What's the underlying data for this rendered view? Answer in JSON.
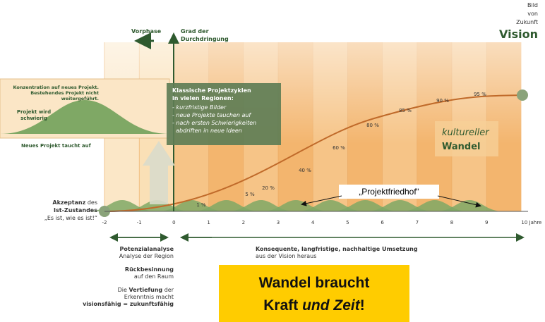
{
  "vision": {
    "line1": "Bild",
    "line2": "von",
    "line3": "Zukunft",
    "title": "Vision"
  },
  "vorphase": "Vorphase",
  "y_axis": {
    "line1": "Grad der",
    "line2": "Durchdringung"
  },
  "inset": {
    "concentration1": "Konzentration auf neues Projekt.",
    "concentration2": "Bestehendes Projekt nicht",
    "concentration3": "weitergeführt.",
    "difficult1": "Projekt wird",
    "difficult2": "schwierig",
    "new_project": "Neues Projekt taucht auf"
  },
  "cycles_box": {
    "title1": "Klassische Projektzyklen",
    "title2": "in vielen Regionen:",
    "items": [
      "- kurzfristige Bilder",
      "- neue Projekte tauchen auf",
      "- nach ersten Schwierigkeiten",
      "  abdriften in neue Ideen"
    ]
  },
  "cultural": {
    "line1": "kultureller",
    "line2": "Wandel"
  },
  "graveyard": "„Projektfriedhof“",
  "acceptance": {
    "bold": "Akzeptanz",
    "rest": " des",
    "line2": "Ist-Zustandes",
    "quote": "„Es ist, wie es ist!“"
  },
  "axis_labels": [
    "-2",
    "-1",
    "0",
    "1",
    "2",
    "3",
    "4",
    "5",
    "6",
    "7",
    "8",
    "9",
    "10 Jahre"
  ],
  "percent_labels": [
    "1 %",
    "5 %",
    "20 %",
    "40 %",
    "60 %",
    "80 %",
    "85 %",
    "90 %",
    "95 %"
  ],
  "left_notes": {
    "potential": "Potenzialanalyse",
    "potential_sub": "Analyse der Region",
    "reflection": "Rückbesinnung",
    "reflection_sub": "auf den Raum",
    "deepening_a": "Die ",
    "deepening_b": "Vertiefung",
    "deepening_c": " der",
    "deepening2": "Erkenntnis macht",
    "deepening3": "visionsfähig = zukunftsfähig"
  },
  "implementation": {
    "line1": "Konsequente, langfristige, nachhaltige Umsetzung",
    "line2": "aus der Vision heraus"
  },
  "callout": {
    "line1": "Wandel braucht",
    "line2a": "Kraft ",
    "line2b": "und Zeit",
    "line2c": "!"
  }
}
